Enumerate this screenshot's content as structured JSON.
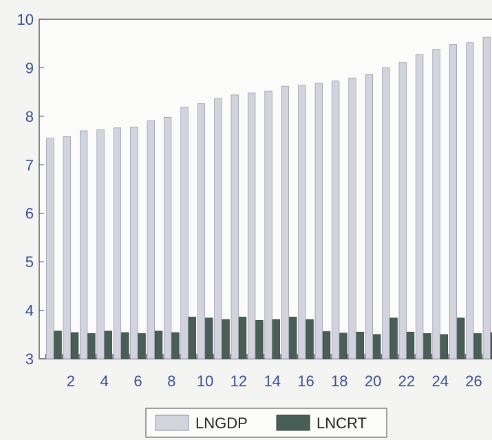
{
  "chart_data": {
    "type": "bar",
    "title": "",
    "xlabel": "",
    "ylabel": "",
    "ylim": [
      3,
      10
    ],
    "yticks": [
      3,
      4,
      5,
      6,
      7,
      8,
      9,
      10
    ],
    "categories": [
      1,
      2,
      3,
      4,
      5,
      6,
      7,
      8,
      9,
      10,
      11,
      12,
      13,
      14,
      15,
      16,
      17,
      18,
      19,
      20,
      21,
      22,
      23,
      24,
      25,
      26,
      27
    ],
    "xtick_labels": [
      "2",
      "4",
      "6",
      "8",
      "10",
      "12",
      "14",
      "16",
      "18",
      "20",
      "22",
      "24",
      "26"
    ],
    "series": [
      {
        "name": "LNGDP",
        "color": "#d3d3de",
        "values": [
          7.55,
          7.58,
          7.7,
          7.72,
          7.76,
          7.78,
          7.91,
          7.98,
          8.19,
          8.26,
          8.37,
          8.44,
          8.48,
          8.52,
          8.62,
          8.64,
          8.68,
          8.73,
          8.79,
          8.86,
          9.0,
          9.11,
          9.27,
          9.38,
          9.48,
          9.52,
          9.63
        ]
      },
      {
        "name": "LNCRT",
        "color": "#4a5e58",
        "values": [
          3.57,
          3.54,
          3.52,
          3.57,
          3.54,
          3.52,
          3.57,
          3.54,
          3.86,
          3.84,
          3.81,
          3.86,
          3.79,
          3.81,
          3.86,
          3.81,
          3.56,
          3.53,
          3.55,
          3.5,
          3.84,
          3.55,
          3.52,
          3.5,
          3.84,
          3.52,
          3.54
        ]
      }
    ],
    "grid": false,
    "legend": "bottom"
  }
}
